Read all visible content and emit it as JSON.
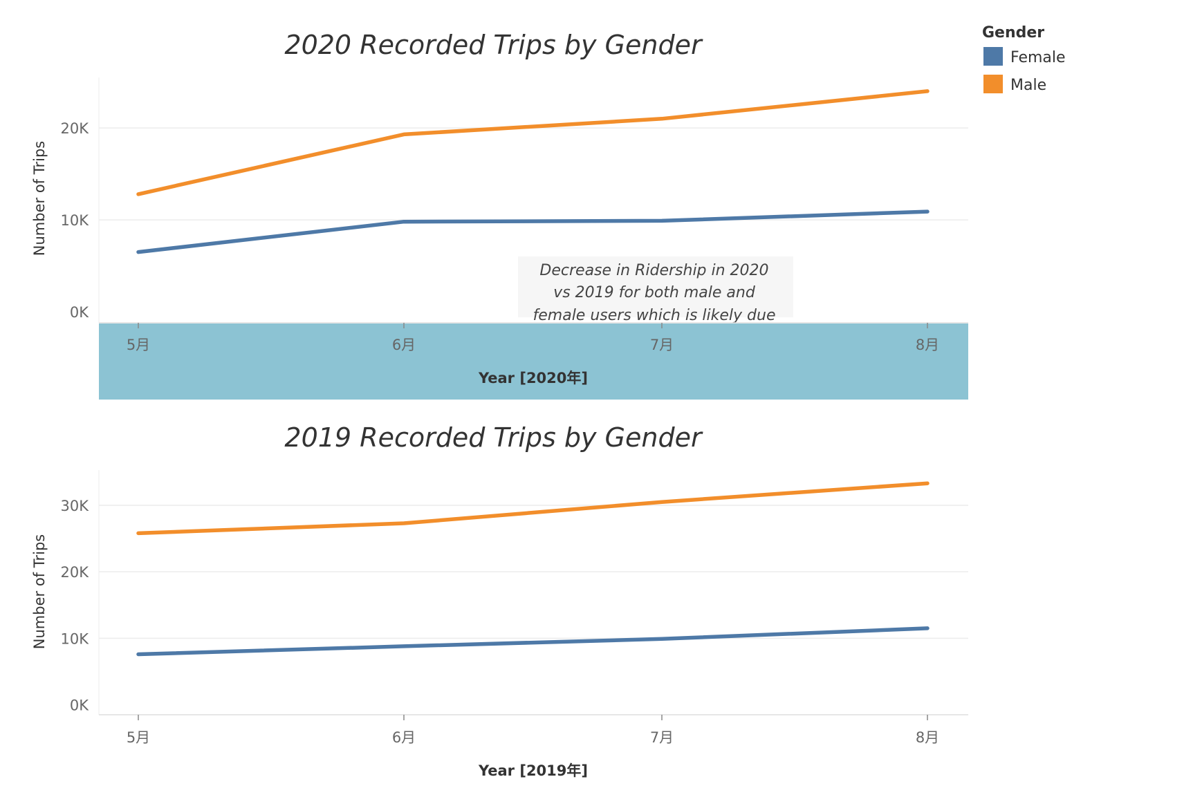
{
  "legend": {
    "title": "Gender",
    "items": [
      {
        "label": "Female",
        "color": "#4e79a7"
      },
      {
        "label": "Male",
        "color": "#f28e2b"
      }
    ]
  },
  "annotation": {
    "lines": [
      "Decrease in Ridership in 2020",
      "vs 2019 for both male and",
      "female users which is likely due"
    ]
  },
  "chart_data": [
    {
      "type": "line",
      "title": "2020 Recorded Trips by Gender",
      "xlabel": "Year [2020年]",
      "ylabel": "Number of Trips",
      "categories": [
        "5月",
        "6月",
        "7月",
        "8月"
      ],
      "yticks": [
        "0K",
        "10K",
        "20K"
      ],
      "ytick_values": [
        0,
        10000,
        20000
      ],
      "ylim": [
        -1200,
        25500
      ],
      "grid": true,
      "x_axis_highlight_color": "#8cc3d3",
      "series": [
        {
          "name": "Female",
          "color": "#4e79a7",
          "values": [
            6500,
            9800,
            9900,
            10900
          ]
        },
        {
          "name": "Male",
          "color": "#f28e2b",
          "values": [
            12800,
            19300,
            21000,
            24000
          ]
        }
      ]
    },
    {
      "type": "line",
      "title": "2019 Recorded Trips by Gender",
      "xlabel": "Year [2019年]",
      "ylabel": "Number of Trips",
      "categories": [
        "5月",
        "6月",
        "7月",
        "8月"
      ],
      "yticks": [
        "0K",
        "10K",
        "20K",
        "30K"
      ],
      "ytick_values": [
        0,
        10000,
        20000,
        30000
      ],
      "ylim": [
        -1500,
        35300
      ],
      "grid": true,
      "series": [
        {
          "name": "Female",
          "color": "#4e79a7",
          "values": [
            7600,
            8800,
            9900,
            11500
          ]
        },
        {
          "name": "Male",
          "color": "#f28e2b",
          "values": [
            25800,
            27300,
            30500,
            33300
          ]
        }
      ]
    }
  ]
}
